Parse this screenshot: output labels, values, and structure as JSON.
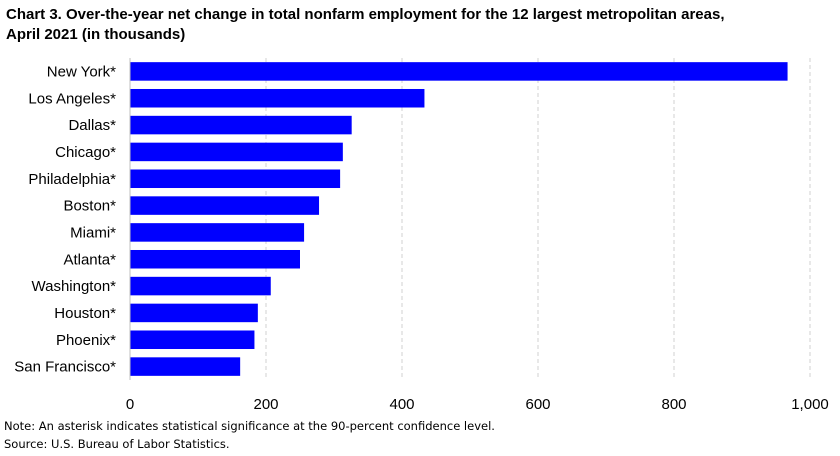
{
  "title_line1": "Chart 3. Over-the-year net change in total nonfarm employment for the 12 largest metropolitan areas,",
  "title_line2": "April 2021 (in thousands)",
  "note": "Note: An asterisk indicates statistical significance at the 90-percent confidence level.",
  "source": "Source: U.S. Bureau of Labor Statistics.",
  "bar_color": "#0000ff",
  "chart_data": {
    "type": "bar",
    "orientation": "horizontal",
    "categories": [
      "New York*",
      "Los Angeles*",
      "Dallas*",
      "Chicago*",
      "Philadelphia*",
      "Boston*",
      "Miami*",
      "Atlanta*",
      "Washington*",
      "Houston*",
      "Phoenix*",
      "San Francisco*"
    ],
    "values": [
      967,
      433,
      326,
      313,
      309,
      278,
      256,
      250,
      207,
      188,
      183,
      162
    ],
    "xlim": [
      0,
      1000
    ],
    "xticks": [
      0,
      200,
      400,
      600,
      800,
      1000
    ],
    "xtick_labels": [
      "0",
      "200",
      "400",
      "600",
      "800",
      "1,000"
    ],
    "grid": "vertical dashed"
  }
}
